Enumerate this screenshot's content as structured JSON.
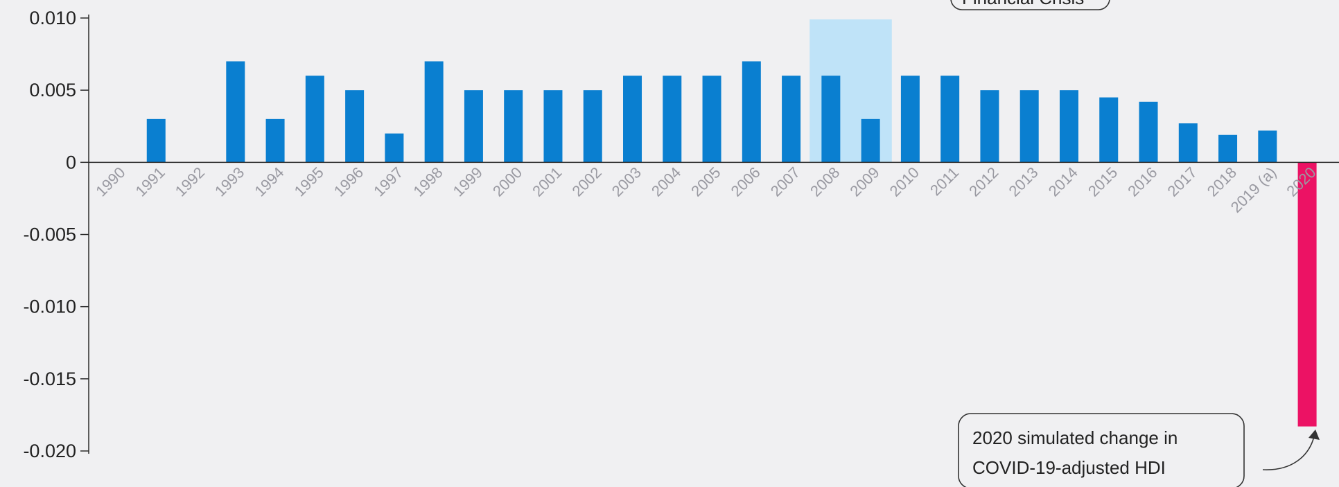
{
  "chart_data": {
    "type": "bar",
    "categories": [
      "1990",
      "1991",
      "1992",
      "1993",
      "1994",
      "1995",
      "1996",
      "1997",
      "1998",
      "1999",
      "2000",
      "2001",
      "2002",
      "2003",
      "2004",
      "2005",
      "2006",
      "2007",
      "2008",
      "2009",
      "2010",
      "2011",
      "2012",
      "2013",
      "2014",
      "2015",
      "2016",
      "2017",
      "2018",
      "2019 (a)",
      "2020"
    ],
    "values": [
      0,
      0.003,
      0,
      0.007,
      0.003,
      0.006,
      0.005,
      0.002,
      0.007,
      0.005,
      0.005,
      0.005,
      0.005,
      0.006,
      0.006,
      0.006,
      0.007,
      0.006,
      0.006,
      0.003,
      0.006,
      0.006,
      0.005,
      0.005,
      0.005,
      0.0045,
      0.0042,
      0.0027,
      0.0019,
      0.0022,
      -0.0183
    ],
    "ylim": [
      -0.02,
      0.01
    ],
    "yticks": [
      0.01,
      0.005,
      0,
      -0.005,
      -0.01,
      -0.015,
      -0.02
    ],
    "ytick_labels": [
      "0.010",
      "0.005",
      "0",
      "-0.005",
      "-0.010",
      "-0.015",
      "-0.020"
    ],
    "xlabel": "",
    "ylabel": "",
    "title": "",
    "grid": false,
    "colors": {
      "bar": "#0a7fd0",
      "highlight_bar": "#ec1264",
      "shade": "#bfe3f8",
      "axis": "#2a2a2a",
      "xtick": "#9a9aa2",
      "background": "#f0f0f2"
    },
    "shaded_region": {
      "from": "2008",
      "to": "2009"
    },
    "highlighted_category": "2020",
    "annotations": [
      {
        "id": "financial-crisis",
        "lines": [
          "Financial Crisis"
        ],
        "target": "2008-2009"
      },
      {
        "id": "covid-callout",
        "lines": [
          "2020 simulated change in",
          "COVID-19-adjusted HDI"
        ],
        "target": "2020"
      }
    ]
  }
}
